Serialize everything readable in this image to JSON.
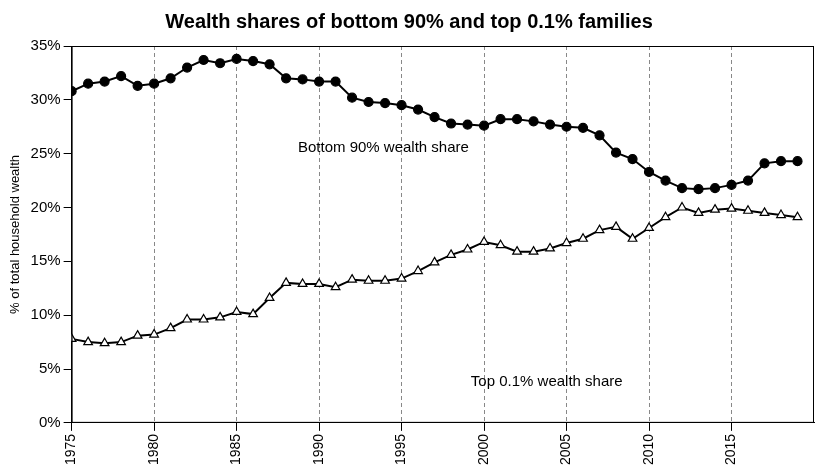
{
  "chart_data": {
    "type": "line",
    "title": "Wealth shares of bottom 90% and top 0.1% families",
    "y_label": "% of total household wealth",
    "x": [
      1975,
      1976,
      1977,
      1978,
      1979,
      1980,
      1981,
      1982,
      1983,
      1984,
      1985,
      1986,
      1987,
      1988,
      1989,
      1990,
      1991,
      1992,
      1993,
      1994,
      1995,
      1996,
      1997,
      1998,
      1999,
      2000,
      2001,
      2002,
      2003,
      2004,
      2005,
      2006,
      2007,
      2008,
      2009,
      2010,
      2011,
      2012,
      2013,
      2014,
      2015,
      2016,
      2017,
      2018,
      2019
    ],
    "series": [
      {
        "name": "Bottom 90% wealth share",
        "color": "#000000",
        "marker": "circle",
        "values": [
          30.8,
          31.5,
          31.7,
          32.2,
          31.3,
          31.5,
          32.0,
          33.0,
          33.7,
          33.4,
          33.8,
          33.6,
          33.3,
          32.0,
          31.9,
          31.7,
          31.7,
          30.2,
          29.8,
          29.7,
          29.5,
          29.1,
          28.4,
          27.8,
          27.7,
          27.6,
          28.2,
          28.2,
          28.0,
          27.7,
          27.5,
          27.4,
          26.7,
          25.1,
          24.5,
          23.3,
          22.5,
          21.8,
          21.7,
          21.8,
          22.1,
          22.5,
          24.1,
          24.3,
          24.3
        ]
      },
      {
        "name": "Top 0.1% wealth share",
        "color": "#000000",
        "marker": "open-triangle",
        "values": [
          7.8,
          7.5,
          7.4,
          7.5,
          8.1,
          8.2,
          8.8,
          9.6,
          9.6,
          9.8,
          10.3,
          10.1,
          11.6,
          13.0,
          12.9,
          12.9,
          12.6,
          13.3,
          13.2,
          13.2,
          13.4,
          14.1,
          14.9,
          15.6,
          16.1,
          16.8,
          16.5,
          15.9,
          15.9,
          16.2,
          16.7,
          17.1,
          17.9,
          18.2,
          17.1,
          18.1,
          19.1,
          20.0,
          19.5,
          19.8,
          19.9,
          19.7,
          19.5,
          19.3,
          19.1
        ]
      }
    ],
    "xlim": [
      1975,
      2020
    ],
    "xticks": [
      1975,
      1980,
      1985,
      1990,
      1995,
      2000,
      2005,
      2010,
      2015
    ],
    "ylim": [
      0,
      35
    ],
    "yticks": [
      {
        "value": 0,
        "label": "0%"
      },
      {
        "value": 5,
        "label": "5%"
      },
      {
        "value": 10,
        "label": "10%"
      },
      {
        "value": 15,
        "label": "15%"
      },
      {
        "value": 20,
        "label": "20%"
      },
      {
        "value": 25,
        "label": "25%"
      },
      {
        "value": 30,
        "label": "30%"
      },
      {
        "value": 35,
        "label": "35%"
      }
    ],
    "grid": "x"
  }
}
